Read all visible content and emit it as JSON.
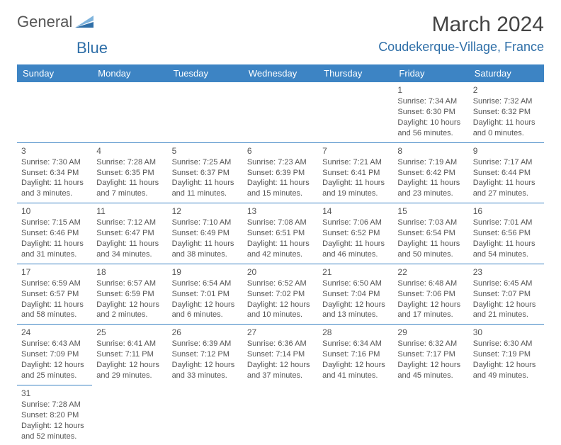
{
  "logo": {
    "part1": "General",
    "part2": "Blue"
  },
  "title": "March 2024",
  "location": "Coudekerque-Village, France",
  "weekdays": [
    "Sunday",
    "Monday",
    "Tuesday",
    "Wednesday",
    "Thursday",
    "Friday",
    "Saturday"
  ],
  "colors": {
    "header_bg": "#3d84c4",
    "header_text": "#ffffff",
    "border": "#3d84c4",
    "accent": "#2f6fa8",
    "body_text": "#555555"
  },
  "weeks": [
    [
      null,
      null,
      null,
      null,
      null,
      {
        "n": "1",
        "sunrise": "Sunrise: 7:34 AM",
        "sunset": "Sunset: 6:30 PM",
        "daylight1": "Daylight: 10 hours",
        "daylight2": "and 56 minutes."
      },
      {
        "n": "2",
        "sunrise": "Sunrise: 7:32 AM",
        "sunset": "Sunset: 6:32 PM",
        "daylight1": "Daylight: 11 hours",
        "daylight2": "and 0 minutes."
      }
    ],
    [
      {
        "n": "3",
        "sunrise": "Sunrise: 7:30 AM",
        "sunset": "Sunset: 6:34 PM",
        "daylight1": "Daylight: 11 hours",
        "daylight2": "and 3 minutes."
      },
      {
        "n": "4",
        "sunrise": "Sunrise: 7:28 AM",
        "sunset": "Sunset: 6:35 PM",
        "daylight1": "Daylight: 11 hours",
        "daylight2": "and 7 minutes."
      },
      {
        "n": "5",
        "sunrise": "Sunrise: 7:25 AM",
        "sunset": "Sunset: 6:37 PM",
        "daylight1": "Daylight: 11 hours",
        "daylight2": "and 11 minutes."
      },
      {
        "n": "6",
        "sunrise": "Sunrise: 7:23 AM",
        "sunset": "Sunset: 6:39 PM",
        "daylight1": "Daylight: 11 hours",
        "daylight2": "and 15 minutes."
      },
      {
        "n": "7",
        "sunrise": "Sunrise: 7:21 AM",
        "sunset": "Sunset: 6:41 PM",
        "daylight1": "Daylight: 11 hours",
        "daylight2": "and 19 minutes."
      },
      {
        "n": "8",
        "sunrise": "Sunrise: 7:19 AM",
        "sunset": "Sunset: 6:42 PM",
        "daylight1": "Daylight: 11 hours",
        "daylight2": "and 23 minutes."
      },
      {
        "n": "9",
        "sunrise": "Sunrise: 7:17 AM",
        "sunset": "Sunset: 6:44 PM",
        "daylight1": "Daylight: 11 hours",
        "daylight2": "and 27 minutes."
      }
    ],
    [
      {
        "n": "10",
        "sunrise": "Sunrise: 7:15 AM",
        "sunset": "Sunset: 6:46 PM",
        "daylight1": "Daylight: 11 hours",
        "daylight2": "and 31 minutes."
      },
      {
        "n": "11",
        "sunrise": "Sunrise: 7:12 AM",
        "sunset": "Sunset: 6:47 PM",
        "daylight1": "Daylight: 11 hours",
        "daylight2": "and 34 minutes."
      },
      {
        "n": "12",
        "sunrise": "Sunrise: 7:10 AM",
        "sunset": "Sunset: 6:49 PM",
        "daylight1": "Daylight: 11 hours",
        "daylight2": "and 38 minutes."
      },
      {
        "n": "13",
        "sunrise": "Sunrise: 7:08 AM",
        "sunset": "Sunset: 6:51 PM",
        "daylight1": "Daylight: 11 hours",
        "daylight2": "and 42 minutes."
      },
      {
        "n": "14",
        "sunrise": "Sunrise: 7:06 AM",
        "sunset": "Sunset: 6:52 PM",
        "daylight1": "Daylight: 11 hours",
        "daylight2": "and 46 minutes."
      },
      {
        "n": "15",
        "sunrise": "Sunrise: 7:03 AM",
        "sunset": "Sunset: 6:54 PM",
        "daylight1": "Daylight: 11 hours",
        "daylight2": "and 50 minutes."
      },
      {
        "n": "16",
        "sunrise": "Sunrise: 7:01 AM",
        "sunset": "Sunset: 6:56 PM",
        "daylight1": "Daylight: 11 hours",
        "daylight2": "and 54 minutes."
      }
    ],
    [
      {
        "n": "17",
        "sunrise": "Sunrise: 6:59 AM",
        "sunset": "Sunset: 6:57 PM",
        "daylight1": "Daylight: 11 hours",
        "daylight2": "and 58 minutes."
      },
      {
        "n": "18",
        "sunrise": "Sunrise: 6:57 AM",
        "sunset": "Sunset: 6:59 PM",
        "daylight1": "Daylight: 12 hours",
        "daylight2": "and 2 minutes."
      },
      {
        "n": "19",
        "sunrise": "Sunrise: 6:54 AM",
        "sunset": "Sunset: 7:01 PM",
        "daylight1": "Daylight: 12 hours",
        "daylight2": "and 6 minutes."
      },
      {
        "n": "20",
        "sunrise": "Sunrise: 6:52 AM",
        "sunset": "Sunset: 7:02 PM",
        "daylight1": "Daylight: 12 hours",
        "daylight2": "and 10 minutes."
      },
      {
        "n": "21",
        "sunrise": "Sunrise: 6:50 AM",
        "sunset": "Sunset: 7:04 PM",
        "daylight1": "Daylight: 12 hours",
        "daylight2": "and 13 minutes."
      },
      {
        "n": "22",
        "sunrise": "Sunrise: 6:48 AM",
        "sunset": "Sunset: 7:06 PM",
        "daylight1": "Daylight: 12 hours",
        "daylight2": "and 17 minutes."
      },
      {
        "n": "23",
        "sunrise": "Sunrise: 6:45 AM",
        "sunset": "Sunset: 7:07 PM",
        "daylight1": "Daylight: 12 hours",
        "daylight2": "and 21 minutes."
      }
    ],
    [
      {
        "n": "24",
        "sunrise": "Sunrise: 6:43 AM",
        "sunset": "Sunset: 7:09 PM",
        "daylight1": "Daylight: 12 hours",
        "daylight2": "and 25 minutes."
      },
      {
        "n": "25",
        "sunrise": "Sunrise: 6:41 AM",
        "sunset": "Sunset: 7:11 PM",
        "daylight1": "Daylight: 12 hours",
        "daylight2": "and 29 minutes."
      },
      {
        "n": "26",
        "sunrise": "Sunrise: 6:39 AM",
        "sunset": "Sunset: 7:12 PM",
        "daylight1": "Daylight: 12 hours",
        "daylight2": "and 33 minutes."
      },
      {
        "n": "27",
        "sunrise": "Sunrise: 6:36 AM",
        "sunset": "Sunset: 7:14 PM",
        "daylight1": "Daylight: 12 hours",
        "daylight2": "and 37 minutes."
      },
      {
        "n": "28",
        "sunrise": "Sunrise: 6:34 AM",
        "sunset": "Sunset: 7:16 PM",
        "daylight1": "Daylight: 12 hours",
        "daylight2": "and 41 minutes."
      },
      {
        "n": "29",
        "sunrise": "Sunrise: 6:32 AM",
        "sunset": "Sunset: 7:17 PM",
        "daylight1": "Daylight: 12 hours",
        "daylight2": "and 45 minutes."
      },
      {
        "n": "30",
        "sunrise": "Sunrise: 6:30 AM",
        "sunset": "Sunset: 7:19 PM",
        "daylight1": "Daylight: 12 hours",
        "daylight2": "and 49 minutes."
      }
    ],
    [
      {
        "n": "31",
        "sunrise": "Sunrise: 7:28 AM",
        "sunset": "Sunset: 8:20 PM",
        "daylight1": "Daylight: 12 hours",
        "daylight2": "and 52 minutes."
      },
      null,
      null,
      null,
      null,
      null,
      null
    ]
  ]
}
